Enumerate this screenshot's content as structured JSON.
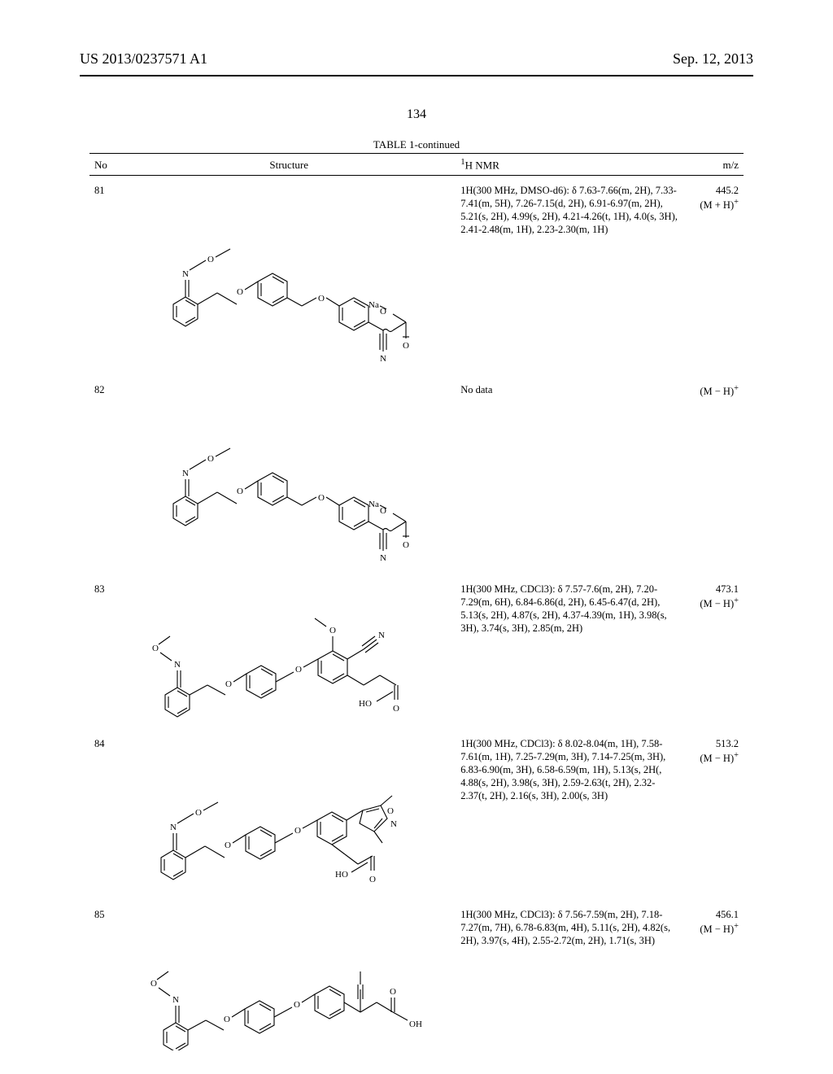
{
  "header": {
    "left": "US 2013/0237571 A1",
    "right": "Sep. 12, 2013"
  },
  "page_number": "134",
  "table": {
    "caption": "TABLE 1-continued",
    "columns": {
      "no": "No",
      "structure": "Structure",
      "nmr_html": "<sup>1</sup>H NMR",
      "mz": "m/z"
    },
    "rows": [
      {
        "no": "81",
        "structure_svg": "s81",
        "nmr": "1H(300 MHz, DMSO-d6): δ 7.63-7.66(m, 2H), 7.33-7.41(m, 5H), 7.26-7.15(d, 2H), 6.91-6.97(m, 2H), 5.21(s, 2H), 4.99(s, 2H), 4.21-4.26(t, 1H), 4.0(s, 3H), 2.41-2.48(m, 1H), 2.23-2.30(m, 1H)",
        "mz_html": "445.2<br>(M + H)<sup>+</sup>"
      },
      {
        "no": "82",
        "structure_svg": "s82",
        "nmr": "No data",
        "mz_html": "(M − H)<sup>+</sup>"
      },
      {
        "no": "83",
        "structure_svg": "s83",
        "nmr": "1H(300 MHz, CDCl3): δ 7.57-7.6(m, 2H), 7.20-7.29(m, 6H), 6.84-6.86(d, 2H), 6.45-6.47(d, 2H), 5.13(s, 2H), 4.87(s, 2H), 4.37-4.39(m, 1H), 3.98(s, 3H), 3.74(s, 3H), 2.85(m, 2H)",
        "mz_html": "473.1<br>(M − H)<sup>+</sup>"
      },
      {
        "no": "84",
        "structure_svg": "s84",
        "nmr": "1H(300 MHz, CDCl3): δ 8.02-8.04(m, 1H), 7.58-7.61(m, 1H), 7.25-7.29(m, 3H), 7.14-7.25(m, 3H), 6.83-6.90(m, 3H), 6.58-6.59(m, 1H), 5.13(s, 2H(, 4.88(s, 2H), 3.98(s, 3H), 2.59-2.63(t, 2H), 2.32-2.37(t, 2H), 2.16(s, 3H), 2.00(s, 3H)",
        "mz_html": "513.2<br>(M − H)<sup>+</sup>"
      },
      {
        "no": "85",
        "structure_svg": "s85",
        "nmr": "1H(300 MHz, CDCl3): δ 7.56-7.59(m, 2H), 7.18-7.27(m, 7H), 6.78-6.83(m, 4H), 5.11(s, 2H), 4.82(s, 2H), 3.97(s, 4H), 2.55-2.72(m, 2H), 1.71(s, 3H)",
        "mz_html": "456.1<br>(M − H)<sup>+</sup>"
      }
    ]
  },
  "svg_style": {
    "stroke": "#000000",
    "stroke_width": 1.1,
    "font": "11px Times New Roman"
  }
}
